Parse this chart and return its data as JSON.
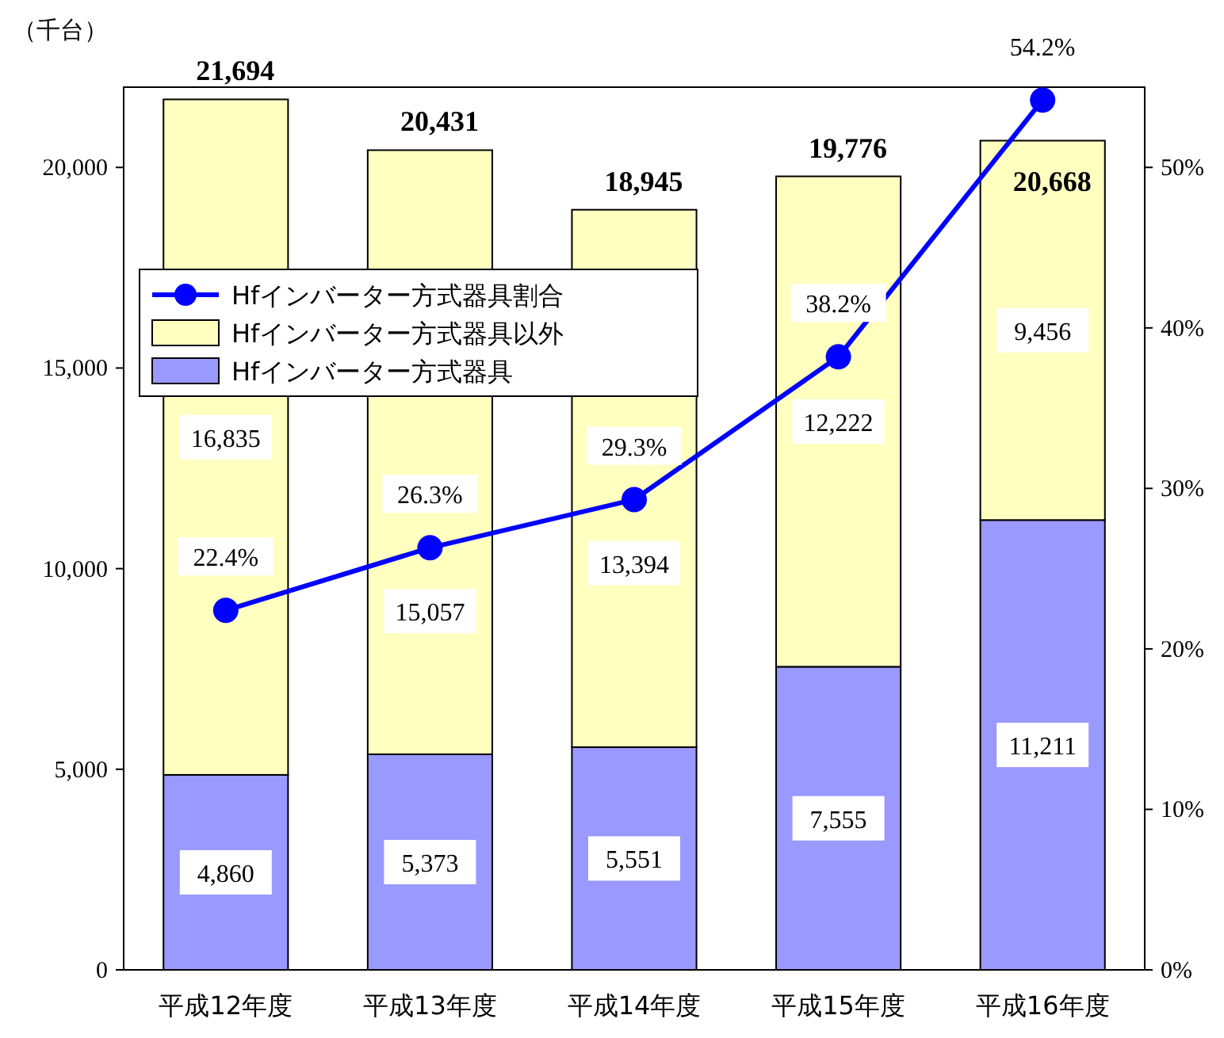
{
  "chart_data": {
    "type": "bar",
    "stacked": true,
    "ylabel": "（千台）",
    "categories": [
      "平成12年度",
      "平成13年度",
      "平成14年度",
      "平成15年度",
      "平成16年度"
    ],
    "series": [
      {
        "name": "Hfインバーター方式器具",
        "color": "#9999ff",
        "values": [
          4860,
          5373,
          5551,
          7555,
          11211
        ],
        "value_labels": [
          "4,860",
          "5,373",
          "5,551",
          "7,555",
          "11,211"
        ]
      },
      {
        "name": "Hfインバーター方式器具以外",
        "color": "#ffffc0",
        "values": [
          16835,
          15057,
          13394,
          12222,
          9456
        ],
        "value_labels": [
          "16,835",
          "15,057",
          "13,394",
          "12,222",
          "9,456"
        ]
      },
      {
        "name": "Hfインバーター方式器具割合",
        "type": "line",
        "axis": "y2",
        "color": "#0000ff",
        "marker": "circle",
        "values": [
          22.4,
          26.3,
          29.3,
          38.2,
          54.2
        ],
        "value_labels": [
          "22.4%",
          "26.3%",
          "29.3%",
          "38.2%",
          "54.2%"
        ]
      }
    ],
    "totals": [
      "21,694",
      "20,431",
      "18,945",
      "19,776",
      "20,668"
    ],
    "ylim": [
      0,
      22000
    ],
    "yticks": [
      0,
      {
        "value": 5000,
        "label": "5,000"
      },
      {
        "value": 10000,
        "label": "10,000"
      },
      {
        "value": 15000,
        "label": "15,000"
      },
      {
        "value": 20000,
        "label": "20,000"
      }
    ],
    "y2lim": [
      0,
      55
    ],
    "y2ticks": [
      {
        "value": 0,
        "label": "0%"
      },
      {
        "value": 10,
        "label": "10%"
      },
      {
        "value": 20,
        "label": "20%"
      },
      {
        "value": 30,
        "label": "30%"
      },
      {
        "value": 40,
        "label": "40%"
      },
      {
        "value": 50,
        "label": "50%"
      }
    ],
    "legend": "top left"
  }
}
